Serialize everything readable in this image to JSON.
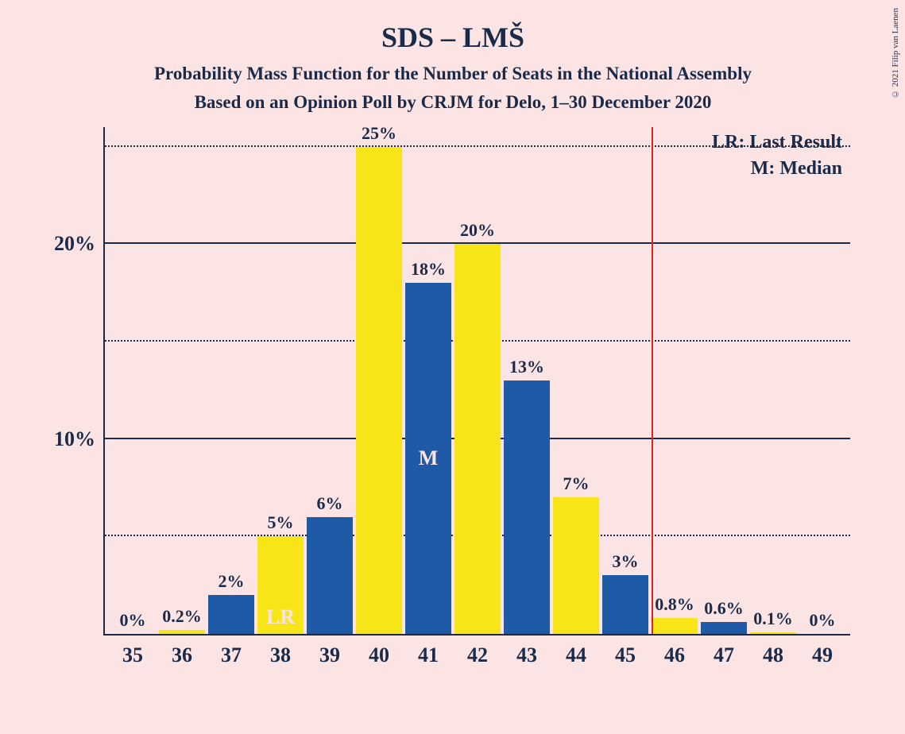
{
  "title": "SDS – LMŠ",
  "subtitle1": "Probability Mass Function for the Number of Seats in the National Assembly",
  "subtitle2": "Based on an Opinion Poll by CRJM for Delo, 1–30 December 2020",
  "copyright": "© 2021 Filip van Laenen",
  "legend": {
    "lr": "LR: Last Result",
    "m": "M: Median"
  },
  "chart": {
    "type": "bar",
    "background_color": "#fde4e4",
    "text_color": "#1a2b4a",
    "bar_colors": {
      "blue": "#1f5aa6",
      "yellow": "#f7e518"
    },
    "majority_line_color": "#d62728",
    "majority_line_x_between": [
      45,
      46
    ],
    "y_axis": {
      "max_pct": 26,
      "major_ticks": [
        10,
        20
      ],
      "minor_ticks": [
        5,
        15,
        25
      ],
      "tick_suffix": "%"
    },
    "categories": [
      "35",
      "36",
      "37",
      "38",
      "39",
      "40",
      "41",
      "42",
      "43",
      "44",
      "45",
      "46",
      "47",
      "48",
      "49"
    ],
    "bars": [
      {
        "value": 0,
        "label": "0%",
        "color": "blue",
        "inner_label": null
      },
      {
        "value": 0.2,
        "label": "0.2%",
        "color": "yellow",
        "inner_label": null
      },
      {
        "value": 2,
        "label": "2%",
        "color": "blue",
        "inner_label": null
      },
      {
        "value": 5,
        "label": "5%",
        "color": "yellow",
        "inner_label": "LR",
        "inner_label_pos": "bottom"
      },
      {
        "value": 6,
        "label": "6%",
        "color": "blue",
        "inner_label": null
      },
      {
        "value": 25,
        "label": "25%",
        "color": "yellow",
        "inner_label": null
      },
      {
        "value": 18,
        "label": "18%",
        "color": "blue",
        "inner_label": "M",
        "inner_label_pos": "middle"
      },
      {
        "value": 20,
        "label": "20%",
        "color": "yellow",
        "inner_label": null
      },
      {
        "value": 13,
        "label": "13%",
        "color": "blue",
        "inner_label": null
      },
      {
        "value": 7,
        "label": "7%",
        "color": "yellow",
        "inner_label": null
      },
      {
        "value": 3,
        "label": "3%",
        "color": "blue",
        "inner_label": null
      },
      {
        "value": 0.8,
        "label": "0.8%",
        "color": "yellow",
        "inner_label": null
      },
      {
        "value": 0.6,
        "label": "0.6%",
        "color": "blue",
        "inner_label": null
      },
      {
        "value": 0.1,
        "label": "0.1%",
        "color": "yellow",
        "inner_label": null
      },
      {
        "value": 0,
        "label": "0%",
        "color": "blue",
        "inner_label": null
      }
    ]
  }
}
